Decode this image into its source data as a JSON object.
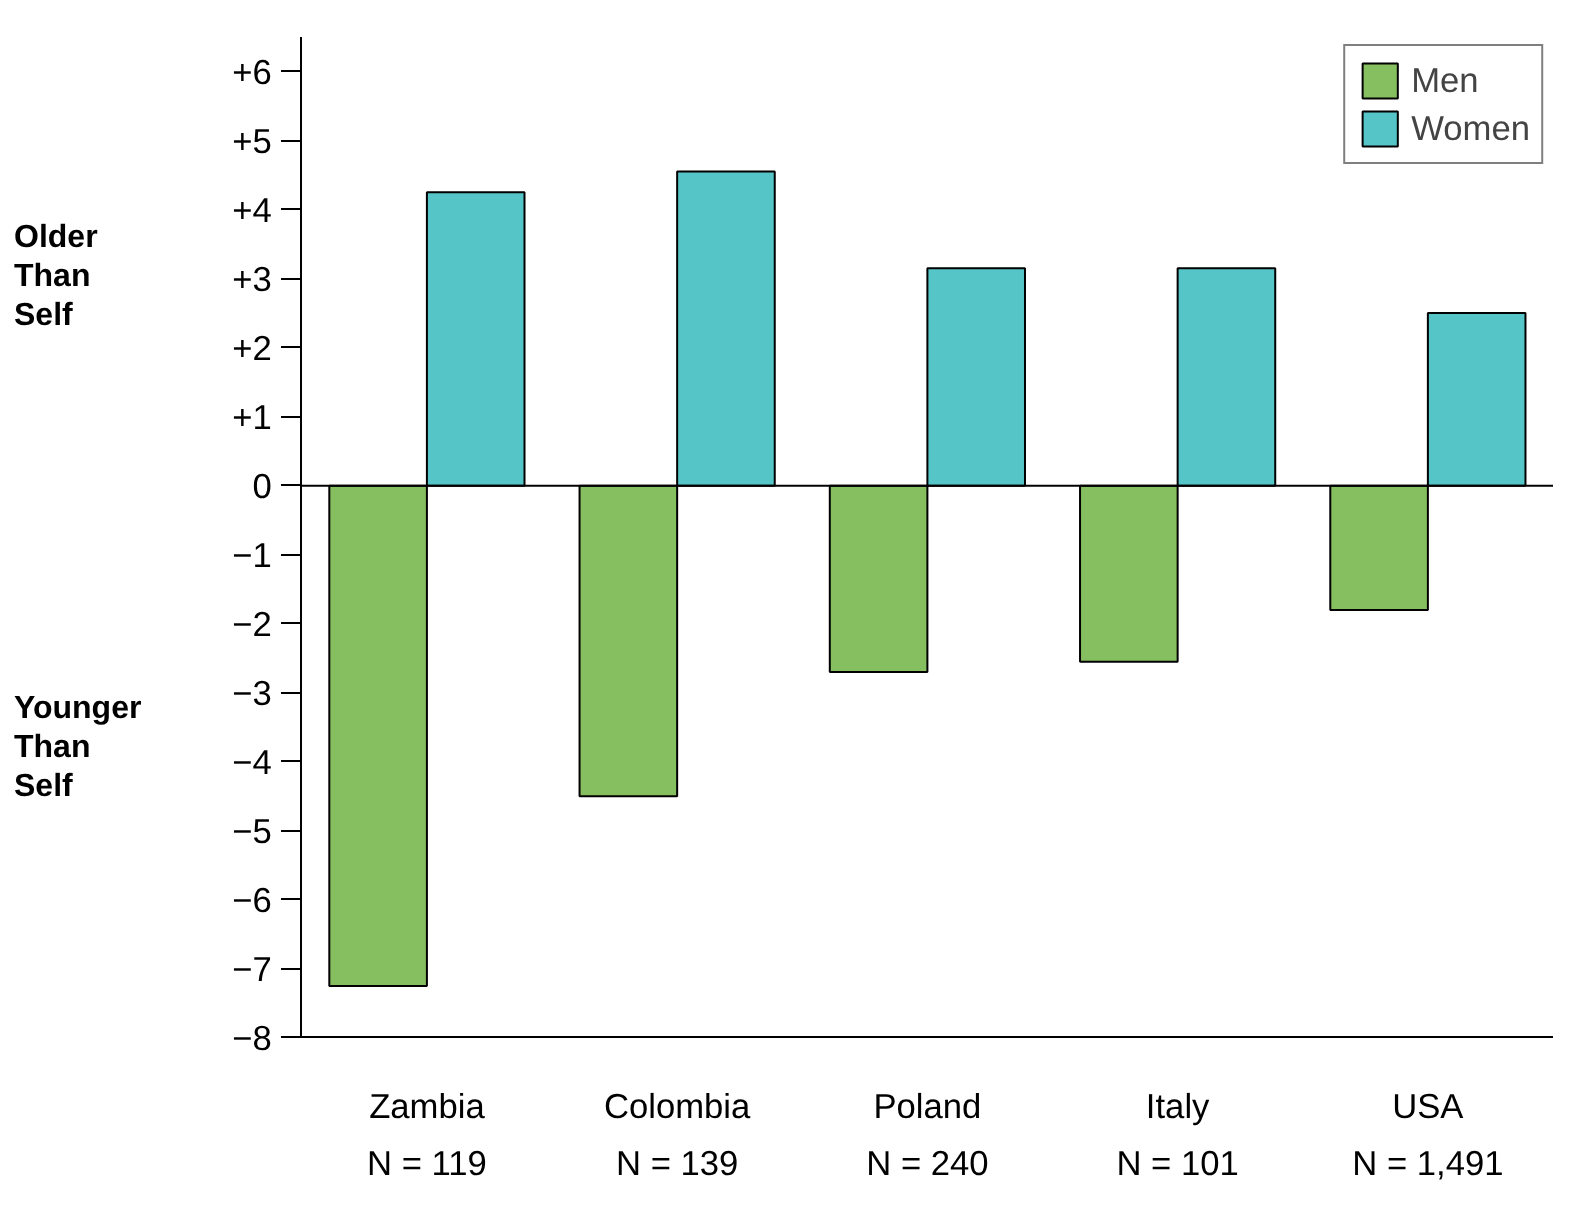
{
  "chart_data": {
    "type": "bar",
    "categories": [
      "Zambia",
      "Colombia",
      "Poland",
      "Italy",
      "USA"
    ],
    "series": [
      {
        "name": "Men",
        "color": "#86bf60",
        "values": [
          -7.25,
          -4.5,
          -2.7,
          -2.55,
          -1.8
        ]
      },
      {
        "name": "Women",
        "color": "#56c5c8",
        "values": [
          4.25,
          4.55,
          3.15,
          3.15,
          2.5
        ]
      }
    ],
    "ylim": [
      -8,
      6.5
    ],
    "yticks": [
      {
        "value": -8,
        "label": "−8"
      },
      {
        "value": -7,
        "label": "−7"
      },
      {
        "value": -6,
        "label": "−6"
      },
      {
        "value": -5,
        "label": "−5"
      },
      {
        "value": -4,
        "label": "−4"
      },
      {
        "value": -3,
        "label": "−3"
      },
      {
        "value": -2,
        "label": "−2"
      },
      {
        "value": -1,
        "label": "−1"
      },
      0,
      {
        "value": 1,
        "label": "+1"
      },
      {
        "value": 2,
        "label": "+2"
      },
      {
        "value": 3,
        "label": "+3"
      },
      {
        "value": 4,
        "label": "+4"
      },
      {
        "value": 5,
        "label": "+5"
      },
      {
        "value": 6,
        "label": "+6"
      }
    ],
    "ref_lines": [
      {
        "axis": "y",
        "value": 0,
        "color": "#000000"
      }
    ],
    "annotations": [
      "Older Than Self",
      "Younger Than Self",
      "N = 119",
      "N = 139",
      "N = 240",
      "N = 101",
      "N = 1,491"
    ],
    "grid": false,
    "legend": "top right"
  }
}
